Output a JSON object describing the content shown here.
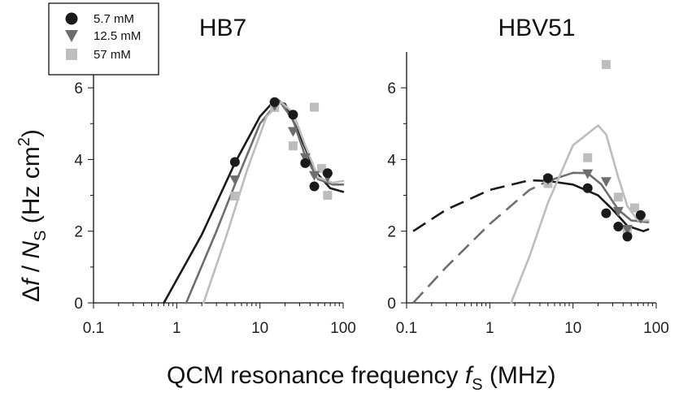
{
  "chart_data": [
    {
      "type": "scatter",
      "title": "HB7",
      "xscale": "log",
      "xlim": [
        0.1,
        100
      ],
      "ylim": [
        0,
        7
      ],
      "xticks": [
        "0.1",
        "1",
        "10",
        "100"
      ],
      "yticks": [
        "0",
        "2",
        "4",
        "6"
      ],
      "series": [
        {
          "name": "5.7 mM",
          "marker": "circle",
          "color": "#1a1a1a",
          "points": [
            [
              5,
              3.93
            ],
            [
              15,
              5.6
            ],
            [
              25,
              5.25
            ],
            [
              35,
              3.9
            ],
            [
              45,
              3.25
            ],
            [
              65,
              3.62
            ]
          ],
          "fit": [
            [
              0.7,
              0
            ],
            [
              2,
              1.9
            ],
            [
              5,
              3.9
            ],
            [
              10,
              5.2
            ],
            [
              15,
              5.65
            ],
            [
              20,
              5.55
            ],
            [
              30,
              4.7
            ],
            [
              45,
              3.7
            ],
            [
              70,
              3.2
            ],
            [
              100,
              3.1
            ]
          ]
        },
        {
          "name": "12.5 mM",
          "marker": "triangle-down",
          "color": "#6e6e6e",
          "points": [
            [
              5,
              3.43
            ],
            [
              15,
              5.5
            ],
            [
              25,
              4.78
            ],
            [
              35,
              4.05
            ],
            [
              45,
              3.55
            ],
            [
              65,
              3.5
            ]
          ],
          "fit": [
            [
              1.3,
              0
            ],
            [
              3,
              2.0
            ],
            [
              5,
              3.3
            ],
            [
              10,
              5.0
            ],
            [
              17,
              5.65
            ],
            [
              25,
              5.1
            ],
            [
              35,
              4.1
            ],
            [
              50,
              3.45
            ],
            [
              75,
              3.3
            ],
            [
              100,
              3.3
            ]
          ]
        },
        {
          "name": "57 mM",
          "marker": "square",
          "color": "#bdbdbd",
          "points": [
            [
              5,
              2.98
            ],
            [
              15,
              5.45
            ],
            [
              25,
              4.38
            ],
            [
              45,
              5.46
            ],
            [
              55,
              3.75
            ],
            [
              65,
              3.0
            ]
          ],
          "fit": [
            [
              2.1,
              0
            ],
            [
              4,
              1.9
            ],
            [
              7,
              3.7
            ],
            [
              12,
              5.2
            ],
            [
              18,
              5.6
            ],
            [
              25,
              5.3
            ],
            [
              35,
              4.4
            ],
            [
              50,
              3.5
            ],
            [
              75,
              3.35
            ],
            [
              100,
              3.4
            ]
          ]
        }
      ]
    },
    {
      "type": "scatter",
      "title": "HBV51",
      "xscale": "log",
      "xlim": [
        0.1,
        100
      ],
      "ylim": [
        0,
        7
      ],
      "xticks": [
        "0.1",
        "1",
        "10",
        "100"
      ],
      "yticks": [
        "0",
        "2",
        "4",
        "6"
      ],
      "series": [
        {
          "name": "5.7 mM",
          "marker": "circle",
          "color": "#1a1a1a",
          "points": [
            [
              5,
              3.48
            ],
            [
              15,
              3.2
            ],
            [
              25,
              2.5
            ],
            [
              35,
              2.13
            ],
            [
              45,
              1.85
            ],
            [
              65,
              2.45
            ]
          ],
          "fit_dashed": [
            [
              0.12,
              2.0
            ],
            [
              0.3,
              2.6
            ],
            [
              1,
              3.15
            ],
            [
              3,
              3.42
            ],
            [
              5,
              3.4
            ]
          ],
          "fit": [
            [
              5,
              3.4
            ],
            [
              10,
              3.3
            ],
            [
              20,
              3.0
            ],
            [
              30,
              2.6
            ],
            [
              45,
              2.15
            ],
            [
              70,
              2.0
            ],
            [
              80,
              2.05
            ]
          ]
        },
        {
          "name": "12.5 mM",
          "marker": "triangle-down",
          "color": "#6e6e6e",
          "points": [
            [
              5,
              3.43
            ],
            [
              15,
              3.6
            ],
            [
              25,
              3.38
            ],
            [
              35,
              2.55
            ],
            [
              45,
              2.05
            ],
            [
              65,
              2.35
            ]
          ],
          "fit_dashed": [
            [
              0.12,
              0.0
            ],
            [
              0.3,
              1.0
            ],
            [
              1,
              2.2
            ],
            [
              3,
              3.15
            ],
            [
              5,
              3.4
            ]
          ],
          "fit": [
            [
              5,
              3.4
            ],
            [
              10,
              3.63
            ],
            [
              15,
              3.62
            ],
            [
              22,
              3.3
            ],
            [
              35,
              2.6
            ],
            [
              50,
              2.3
            ],
            [
              80,
              2.25
            ]
          ]
        },
        {
          "name": "57 mM",
          "marker": "square",
          "color": "#bdbdbd",
          "points": [
            [
              5,
              3.33
            ],
            [
              15,
              4.05
            ],
            [
              25,
              6.65
            ],
            [
              35,
              2.95
            ],
            [
              45,
              2.0
            ],
            [
              55,
              2.65
            ]
          ],
          "fit": [
            [
              1.8,
              0
            ],
            [
              3,
              1.3
            ],
            [
              5,
              2.8
            ],
            [
              10,
              4.4
            ],
            [
              20,
              4.95
            ],
            [
              25,
              4.7
            ],
            [
              35,
              3.5
            ],
            [
              45,
              2.7
            ],
            [
              60,
              2.3
            ],
            [
              80,
              2.3
            ]
          ]
        }
      ]
    }
  ],
  "ylabel_parts": [
    "Δ",
    "f",
    " / ",
    "N",
    "S",
    "  (Hz cm",
    "2",
    ")"
  ],
  "xlabel_parts": [
    "QCM resonance frequency ",
    "f",
    "S",
    " (MHz)"
  ],
  "legend": [
    {
      "label": "5.7 mM"
    },
    {
      "label": "12.5 mM"
    },
    {
      "label": "57 mM"
    }
  ]
}
